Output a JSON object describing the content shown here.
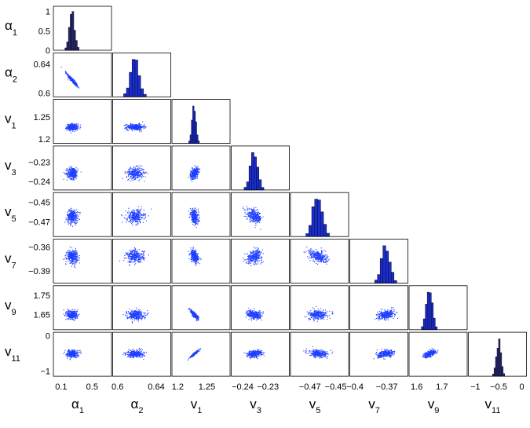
{
  "chart_data": {
    "type": "corner-plot",
    "title": "",
    "variables": [
      {
        "name": "α",
        "sub": "1",
        "range": [
          0,
          0.75
        ],
        "ticks": [
          {
            "v": 0.1,
            "label": "0.1"
          },
          {
            "v": 0.5,
            "label": "0.5"
          }
        ],
        "hist_ticks": [
          {
            "v": 1,
            "label": "1"
          },
          {
            "v": 0.5,
            "label": "0.5"
          },
          {
            "v": 0,
            "label": "0"
          }
        ],
        "mean": 0.24,
        "sd": 0.035
      },
      {
        "name": "α",
        "sub": "2",
        "range": [
          0.595,
          0.655
        ],
        "ticks": [
          {
            "v": 0.6,
            "label": "0.6"
          },
          {
            "v": 0.64,
            "label": "0.64"
          }
        ],
        "mean": 0.618,
        "sd": 0.0045
      },
      {
        "name": "v",
        "sub": "1",
        "range": [
          1.19,
          1.29
        ],
        "ticks": [
          {
            "v": 1.2,
            "label": "1.2"
          },
          {
            "v": 1.25,
            "label": "1.25"
          }
        ],
        "mean": 1.228,
        "sd": 0.0035
      },
      {
        "name": "v",
        "sub": "3",
        "range": [
          -0.2445,
          -0.2215
        ],
        "ticks": [
          {
            "v": -0.24,
            "label": "−0.24"
          },
          {
            "v": -0.23,
            "label": "−0.23"
          }
        ],
        "mean": -0.2355,
        "sd": 0.0015
      },
      {
        "name": "v",
        "sub": "5",
        "range": [
          -0.485,
          -0.44
        ],
        "ticks": [
          {
            "v": -0.47,
            "label": "−0.47"
          },
          {
            "v": -0.45,
            "label": "−0.45"
          }
        ],
        "mean": -0.464,
        "sd": 0.0035
      },
      {
        "name": "v",
        "sub": "7",
        "range": [
          -0.405,
          -0.35
        ],
        "ticks": [
          {
            "v": -0.4,
            "label": "−0.4"
          },
          {
            "v": -0.37,
            "label": "−0.37"
          }
        ],
        "mean": -0.371,
        "sd": 0.004
      },
      {
        "name": "v",
        "sub": "9",
        "range": [
          1.57,
          1.8
        ],
        "ticks": [
          {
            "v": 1.6,
            "label": "1.6"
          },
          {
            "v": 1.7,
            "label": "1.7"
          }
        ],
        "mean": 1.65,
        "sd": 0.012
      },
      {
        "name": "v",
        "sub": "11",
        "range": [
          -1.15,
          0.1
        ],
        "ticks": [
          {
            "v": -1,
            "label": "−1"
          },
          {
            "v": -0.5,
            "label": "−0.5"
          },
          {
            "v": 0,
            "label": "0"
          }
        ],
        "mean": -0.5,
        "sd": 0.05
      }
    ],
    "row_ticks": [
      [
        {
          "v": 1,
          "label": "1"
        },
        {
          "v": 0.5,
          "label": "0.5"
        },
        {
          "v": 0,
          "label": "0"
        }
      ],
      [
        {
          "v": 0.64,
          "label": "0.64"
        },
        {
          "v": 0.6,
          "label": "0.6"
        }
      ],
      [
        {
          "v": 1.25,
          "label": "1.25"
        },
        {
          "v": 1.2,
          "label": "1.2"
        }
      ],
      [
        {
          "v": -0.23,
          "label": "−0.23"
        },
        {
          "v": -0.24,
          "label": "−0.24"
        }
      ],
      [
        {
          "v": -0.45,
          "label": "−0.45"
        },
        {
          "v": -0.47,
          "label": "−0.47"
        }
      ],
      [
        {
          "v": -0.36,
          "label": "−0.36"
        },
        {
          "v": -0.39,
          "label": "−0.39"
        }
      ],
      [
        {
          "v": 1.75,
          "label": "1.75"
        },
        {
          "v": 1.65,
          "label": "1.65"
        }
      ],
      [
        {
          "v": 0,
          "label": "0"
        },
        {
          "v": -1,
          "label": "−1"
        }
      ]
    ],
    "correlations": [
      [
        1,
        -0.95,
        0.0,
        0.0,
        0.0,
        0.0,
        0.0,
        0.0
      ],
      [
        -0.95,
        1,
        0.0,
        0.0,
        0.0,
        0.0,
        0.0,
        0.0
      ],
      [
        0.0,
        0.0,
        1,
        0.45,
        -0.3,
        -0.4,
        -0.85,
        0.95
      ],
      [
        0.0,
        0.0,
        0.45,
        1,
        -0.4,
        0.3,
        -0.3,
        0.2
      ],
      [
        0.0,
        0.0,
        -0.3,
        -0.4,
        1,
        -0.45,
        0.2,
        -0.2
      ],
      [
        0.0,
        0.0,
        -0.4,
        0.3,
        -0.45,
        1,
        0.4,
        0.35
      ],
      [
        0.0,
        0.0,
        -0.85,
        -0.3,
        0.2,
        0.4,
        1,
        0.6
      ],
      [
        0.0,
        0.0,
        0.95,
        0.2,
        -0.2,
        0.35,
        0.6,
        1
      ]
    ],
    "scatter_color": "#1f3fff",
    "hist_fill_primary": "#1a2ecc",
    "hist_fill_secondary": "#2a2a5e",
    "grid": false,
    "legend": "none"
  }
}
